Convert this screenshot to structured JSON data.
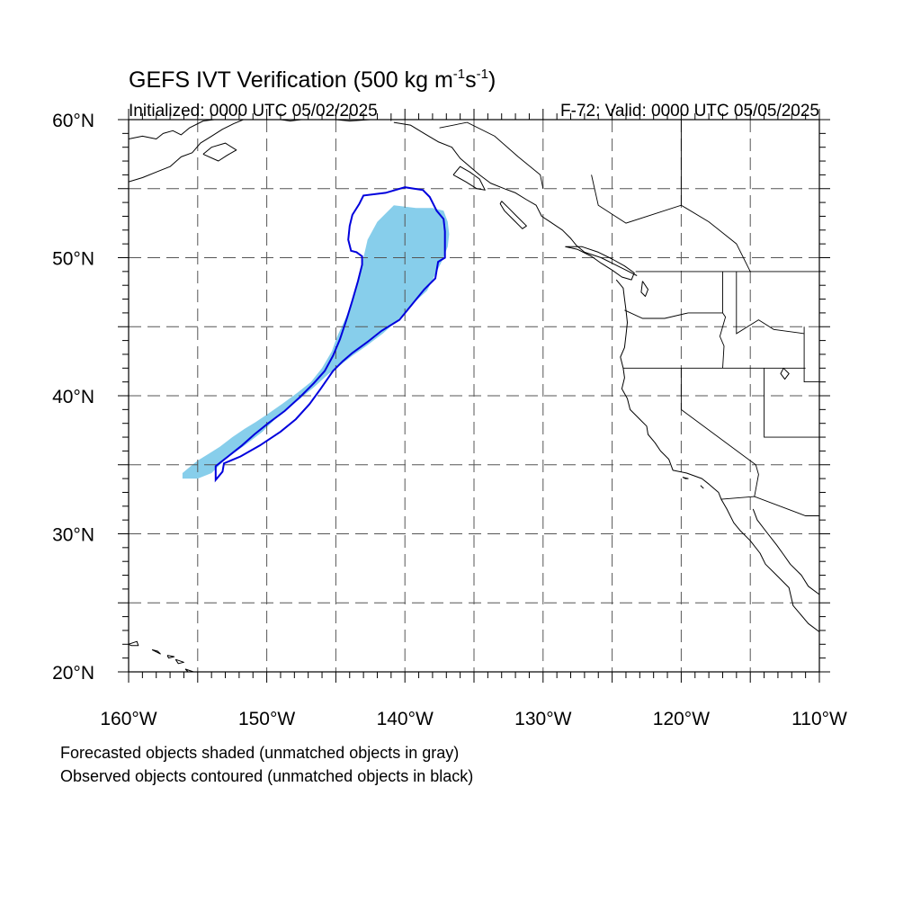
{
  "header": {
    "title_main": "GEFS IVT Verification (500 kg m",
    "title_sup1": "-1",
    "title_mid": "s",
    "title_sup2": "-1",
    "title_end": ")",
    "initialized": "Initialized: 0000 UTC 05/02/2025",
    "valid": "F-72: Valid: 0000 UTC 05/05/2025"
  },
  "map": {
    "projection": "cylindrical equidistant",
    "lon_range": [
      -160,
      -110
    ],
    "lat_range": [
      20,
      60
    ],
    "grid": "dashed",
    "lat_labels": [
      {
        "value": 60,
        "text": "60°N"
      },
      {
        "value": 50,
        "text": "50°N"
      },
      {
        "value": 40,
        "text": "40°N"
      },
      {
        "value": 30,
        "text": "30°N"
      },
      {
        "value": 20,
        "text": "20°N"
      }
    ],
    "lon_labels": [
      {
        "value": -160,
        "text": "160°W"
      },
      {
        "value": -150,
        "text": "150°W"
      },
      {
        "value": -140,
        "text": "140°W"
      },
      {
        "value": -130,
        "text": "130°W"
      },
      {
        "value": -120,
        "text": "120°W"
      },
      {
        "value": -110,
        "text": "110°W"
      }
    ],
    "colors": {
      "forecast_fill": "#87CEEB",
      "observed_contour": "#0000DD",
      "coastline": "#000000",
      "grid": "#555555"
    },
    "forecast_object_outline": [
      [
        -156.1,
        34.0
      ],
      [
        -156.1,
        34.4
      ],
      [
        -155.5,
        34.9
      ],
      [
        -155.0,
        35.3
      ],
      [
        -154.2,
        35.8
      ],
      [
        -153.4,
        36.3
      ],
      [
        -152.5,
        37.0
      ],
      [
        -151.6,
        37.6
      ],
      [
        -150.8,
        38.1
      ],
      [
        -149.9,
        38.7
      ],
      [
        -148.9,
        39.4
      ],
      [
        -147.8,
        40.2
      ],
      [
        -146.8,
        41.0
      ],
      [
        -146.0,
        42.0
      ],
      [
        -145.3,
        43.2
      ],
      [
        -144.9,
        44.3
      ],
      [
        -144.3,
        45.6
      ],
      [
        -143.7,
        47.1
      ],
      [
        -143.3,
        48.6
      ],
      [
        -143.0,
        50.0
      ],
      [
        -142.7,
        51.3
      ],
      [
        -142.0,
        52.6
      ],
      [
        -140.8,
        53.8
      ],
      [
        -139.2,
        53.6
      ],
      [
        -138.0,
        53.6
      ],
      [
        -137.2,
        53.4
      ],
      [
        -136.9,
        52.6
      ],
      [
        -136.8,
        51.7
      ],
      [
        -136.9,
        50.8
      ],
      [
        -137.3,
        49.8
      ],
      [
        -137.9,
        48.6
      ],
      [
        -138.4,
        47.6
      ],
      [
        -139.5,
        46.6
      ],
      [
        -140.5,
        45.5
      ],
      [
        -141.6,
        44.5
      ],
      [
        -142.8,
        43.6
      ],
      [
        -143.8,
        42.9
      ],
      [
        -144.7,
        42.2
      ],
      [
        -145.5,
        41.6
      ],
      [
        -146.6,
        40.6
      ],
      [
        -147.7,
        39.7
      ],
      [
        -148.9,
        38.8
      ],
      [
        -150.3,
        37.4
      ],
      [
        -151.6,
        36.4
      ],
      [
        -152.9,
        35.5
      ],
      [
        -154.0,
        34.4
      ],
      [
        -155.0,
        34.0
      ]
    ],
    "observed_object_outline": [
      [
        -153.7,
        33.9
      ],
      [
        -153.7,
        34.9
      ],
      [
        -152.8,
        35.6
      ],
      [
        -151.8,
        36.4
      ],
      [
        -150.9,
        37.2
      ],
      [
        -149.9,
        38.0
      ],
      [
        -148.7,
        38.9
      ],
      [
        -147.6,
        39.9
      ],
      [
        -146.6,
        40.9
      ],
      [
        -145.8,
        41.8
      ],
      [
        -145.2,
        42.9
      ],
      [
        -144.7,
        44.1
      ],
      [
        -144.2,
        45.6
      ],
      [
        -143.8,
        46.9
      ],
      [
        -143.4,
        48.3
      ],
      [
        -143.1,
        49.5
      ],
      [
        -143.1,
        50.1
      ],
      [
        -143.5,
        50.4
      ],
      [
        -143.9,
        50.5
      ],
      [
        -144.1,
        51.3
      ],
      [
        -144.0,
        52.3
      ],
      [
        -143.8,
        53.1
      ],
      [
        -143.3,
        53.9
      ],
      [
        -143.0,
        54.5
      ],
      [
        -141.4,
        54.7
      ],
      [
        -140.0,
        55.1
      ],
      [
        -138.7,
        54.9
      ],
      [
        -138.2,
        54.4
      ],
      [
        -137.7,
        53.4
      ],
      [
        -137.2,
        52.8
      ],
      [
        -137.1,
        51.9
      ],
      [
        -137.1,
        50.0
      ],
      [
        -137.6,
        49.7
      ],
      [
        -137.8,
        48.5
      ],
      [
        -138.6,
        47.7
      ],
      [
        -139.5,
        46.6
      ],
      [
        -140.4,
        45.5
      ],
      [
        -141.7,
        44.7
      ],
      [
        -142.7,
        43.9
      ],
      [
        -143.8,
        43.1
      ],
      [
        -144.5,
        42.5
      ],
      [
        -145.2,
        41.8
      ],
      [
        -146.1,
        40.5
      ],
      [
        -146.9,
        39.4
      ],
      [
        -147.9,
        38.3
      ],
      [
        -149.0,
        37.4
      ],
      [
        -150.5,
        36.4
      ],
      [
        -151.9,
        35.6
      ],
      [
        -153.1,
        35.1
      ],
      [
        -153.2,
        34.5
      ]
    ],
    "coastlines": [
      [
        [
          -160.0,
          58.6
        ],
        [
          -159.0,
          58.8
        ],
        [
          -158.0,
          58.6
        ],
        [
          -157.5,
          59.0
        ],
        [
          -156.8,
          59.2
        ],
        [
          -156.2,
          58.9
        ],
        [
          -155.6,
          59.4
        ],
        [
          -154.6,
          59.9
        ],
        [
          -153.8,
          60.0
        ]
      ],
      [
        [
          -160.0,
          55.5
        ],
        [
          -159.0,
          55.8
        ],
        [
          -158.0,
          56.2
        ],
        [
          -157.0,
          56.6
        ],
        [
          -156.2,
          57.3
        ],
        [
          -155.4,
          57.6
        ],
        [
          -154.8,
          58.3
        ],
        [
          -154.0,
          58.8
        ],
        [
          -153.2,
          59.3
        ],
        [
          -152.4,
          59.7
        ],
        [
          -151.7,
          60.0
        ]
      ],
      [
        [
          -154.6,
          57.5
        ],
        [
          -153.5,
          57.0
        ],
        [
          -152.9,
          57.4
        ],
        [
          -152.2,
          57.8
        ],
        [
          -153.0,
          58.3
        ],
        [
          -154.0,
          58.0
        ],
        [
          -154.6,
          57.5
        ]
      ],
      [
        [
          -149.0,
          60.0
        ],
        [
          -148.3,
          59.9
        ],
        [
          -147.5,
          60.0
        ]
      ],
      [
        [
          -145.0,
          60.0
        ],
        [
          -144.0,
          59.9
        ],
        [
          -142.5,
          60.0
        ]
      ],
      [
        [
          -140.8,
          59.8
        ],
        [
          -139.6,
          59.6
        ],
        [
          -138.6,
          59.0
        ],
        [
          -137.6,
          58.4
        ],
        [
          -136.6,
          58.0
        ],
        [
          -136.0,
          57.2
        ],
        [
          -135.3,
          56.6
        ],
        [
          -134.6,
          56.0
        ],
        [
          -133.8,
          55.4
        ],
        [
          -132.8,
          55.0
        ],
        [
          -132.0,
          54.7
        ],
        [
          -131.2,
          54.2
        ],
        [
          -130.5,
          53.8
        ],
        [
          -130.1,
          53.0
        ],
        [
          -129.5,
          52.6
        ],
        [
          -128.6,
          52.0
        ],
        [
          -128.0,
          51.4
        ],
        [
          -127.6,
          50.9
        ],
        [
          -127.0,
          50.4
        ],
        [
          -125.8,
          50.0
        ],
        [
          -124.8,
          49.5
        ],
        [
          -124.0,
          49.1
        ],
        [
          -123.2,
          48.7
        ]
      ],
      [
        [
          -136.5,
          56.0
        ],
        [
          -135.6,
          55.5
        ],
        [
          -134.8,
          55.0
        ],
        [
          -134.2,
          54.9
        ],
        [
          -134.6,
          55.7
        ],
        [
          -135.3,
          56.2
        ],
        [
          -136.0,
          56.6
        ],
        [
          -136.5,
          56.0
        ]
      ],
      [
        [
          -133.0,
          54.1
        ],
        [
          -132.5,
          53.6
        ],
        [
          -131.9,
          53.0
        ],
        [
          -131.2,
          52.3
        ],
        [
          -131.5,
          52.1
        ],
        [
          -132.2,
          52.8
        ],
        [
          -132.8,
          53.4
        ],
        [
          -133.1,
          53.9
        ],
        [
          -133.0,
          54.1
        ]
      ],
      [
        [
          -128.4,
          50.8
        ],
        [
          -127.5,
          50.6
        ],
        [
          -126.5,
          50.1
        ],
        [
          -125.8,
          49.6
        ],
        [
          -125.0,
          49.1
        ],
        [
          -124.3,
          48.6
        ],
        [
          -123.6,
          48.4
        ],
        [
          -123.4,
          48.9
        ],
        [
          -124.1,
          49.4
        ],
        [
          -125.0,
          49.9
        ],
        [
          -126.0,
          50.4
        ],
        [
          -127.2,
          50.8
        ],
        [
          -128.4,
          50.8
        ]
      ],
      [
        [
          -124.7,
          48.4
        ],
        [
          -124.2,
          47.8
        ],
        [
          -124.1,
          47.0
        ],
        [
          -124.0,
          46.2
        ],
        [
          -123.9,
          45.3
        ],
        [
          -124.0,
          44.4
        ],
        [
          -124.1,
          43.5
        ],
        [
          -124.4,
          42.8
        ],
        [
          -124.2,
          42.0
        ],
        [
          -124.1,
          41.3
        ],
        [
          -124.3,
          40.5
        ],
        [
          -123.9,
          39.8
        ],
        [
          -123.7,
          39.0
        ],
        [
          -123.0,
          38.3
        ],
        [
          -122.5,
          37.8
        ],
        [
          -122.4,
          37.2
        ],
        [
          -121.9,
          36.6
        ],
        [
          -121.5,
          36.0
        ],
        [
          -120.9,
          35.4
        ],
        [
          -120.6,
          34.6
        ],
        [
          -119.6,
          34.4
        ],
        [
          -118.5,
          34.0
        ],
        [
          -118.0,
          33.6
        ],
        [
          -117.3,
          33.0
        ],
        [
          -117.1,
          32.5
        ],
        [
          -116.7,
          31.8
        ],
        [
          -116.2,
          30.8
        ],
        [
          -115.7,
          30.2
        ],
        [
          -115.0,
          29.5
        ],
        [
          -114.3,
          28.6
        ],
        [
          -113.9,
          27.8
        ],
        [
          -113.1,
          27.0
        ],
        [
          -112.2,
          26.1
        ],
        [
          -111.9,
          24.8
        ],
        [
          -110.8,
          23.5
        ],
        [
          -110.0,
          22.9
        ]
      ],
      [
        [
          -114.8,
          31.8
        ],
        [
          -114.5,
          31.0
        ],
        [
          -113.8,
          30.1
        ],
        [
          -113.1,
          29.2
        ],
        [
          -112.6,
          28.5
        ],
        [
          -112.1,
          27.8
        ],
        [
          -111.3,
          27.0
        ],
        [
          -110.8,
          26.2
        ],
        [
          -110.0,
          25.6
        ]
      ],
      [
        [
          -122.8,
          48.3
        ],
        [
          -122.4,
          47.7
        ],
        [
          -122.6,
          47.2
        ],
        [
          -122.9,
          47.5
        ],
        [
          -122.8,
          48.3
        ]
      ],
      [
        [
          -160.0,
          22.0
        ],
        [
          -159.4,
          22.2
        ],
        [
          -159.3,
          21.9
        ],
        [
          -159.8,
          21.9
        ],
        [
          -160.0,
          22.0
        ]
      ],
      [
        [
          -158.3,
          21.6
        ],
        [
          -157.7,
          21.3
        ],
        [
          -157.9,
          21.5
        ],
        [
          -158.3,
          21.6
        ]
      ],
      [
        [
          -157.2,
          21.2
        ],
        [
          -156.7,
          21.1
        ],
        [
          -157.1,
          21.0
        ],
        [
          -157.2,
          21.2
        ]
      ],
      [
        [
          -156.6,
          20.9
        ],
        [
          -156.0,
          20.7
        ],
        [
          -156.4,
          20.6
        ],
        [
          -156.6,
          20.9
        ]
      ],
      [
        [
          -155.9,
          20.2
        ],
        [
          -155.3,
          20.0
        ],
        [
          -154.9,
          19.6
        ],
        [
          -155.5,
          19.8
        ],
        [
          -155.9,
          20.2
        ]
      ],
      [
        [
          -118.6,
          33.5
        ],
        [
          -118.4,
          33.3
        ],
        [
          -118.5,
          33.4
        ],
        [
          -118.6,
          33.5
        ]
      ],
      [
        [
          -119.9,
          34.1
        ],
        [
          -119.5,
          34.0
        ],
        [
          -119.7,
          34.0
        ],
        [
          -119.9,
          34.1
        ]
      ],
      [
        [
          -112.6,
          42.0
        ],
        [
          -112.2,
          41.6
        ],
        [
          -112.5,
          41.2
        ],
        [
          -112.8,
          41.6
        ],
        [
          -112.6,
          42.0
        ]
      ]
    ],
    "boundaries": [
      [
        [
          -123.3,
          49.0
        ],
        [
          -110.0,
          49.0
        ]
      ],
      [
        [
          -141.0,
          60.0
        ],
        [
          -141.0,
          59.9
        ]
      ],
      [
        [
          -137.5,
          59.4
        ],
        [
          -135.5,
          59.8
        ],
        [
          -133.5,
          58.8
        ],
        [
          -131.8,
          57.3
        ],
        [
          -130.2,
          56.0
        ],
        [
          -130.0,
          55.0
        ]
      ],
      [
        [
          -117.0,
          49.0
        ],
        [
          -117.0,
          46.0
        ],
        [
          -116.8,
          45.7
        ],
        [
          -117.2,
          44.3
        ],
        [
          -116.9,
          43.6
        ],
        [
          -117.0,
          42.0
        ]
      ],
      [
        [
          -124.1,
          46.2
        ],
        [
          -122.8,
          45.6
        ],
        [
          -121.2,
          45.6
        ],
        [
          -119.5,
          46.0
        ],
        [
          -117.0,
          46.0
        ]
      ],
      [
        [
          -124.2,
          42.0
        ],
        [
          -111.0,
          42.0
        ]
      ],
      [
        [
          -120.0,
          42.0
        ],
        [
          -120.0,
          39.0
        ],
        [
          -114.6,
          35.0
        ],
        [
          -114.4,
          34.3
        ],
        [
          -114.7,
          32.7
        ]
      ],
      [
        [
          -117.1,
          32.5
        ],
        [
          -114.7,
          32.7
        ],
        [
          -111.0,
          31.3
        ],
        [
          -110.0,
          31.3
        ]
      ],
      [
        [
          -114.0,
          42.0
        ],
        [
          -114.0,
          37.0
        ],
        [
          -110.0,
          37.0
        ]
      ],
      [
        [
          -116.0,
          49.0
        ],
        [
          -116.0,
          44.5
        ],
        [
          -114.4,
          45.5
        ],
        [
          -113.3,
          44.8
        ],
        [
          -111.1,
          44.5
        ]
      ],
      [
        [
          -111.1,
          45.0
        ],
        [
          -111.1,
          41.0
        ],
        [
          -110.0,
          41.0
        ]
      ],
      [
        [
          -126.5,
          56.0
        ],
        [
          -126.0,
          53.8
        ],
        [
          -124.0,
          52.5
        ],
        [
          -120.0,
          53.8
        ],
        [
          -118.0,
          52.6
        ],
        [
          -116.0,
          51.0
        ],
        [
          -115.0,
          49.0
        ]
      ],
      [
        [
          -120.0,
          60.0
        ],
        [
          -120.0,
          53.8
        ]
      ]
    ]
  },
  "footer": {
    "line1": "Forecasted objects shaded (unmatched objects in gray)",
    "line2": "Observed objects contoured (unmatched objects in black)"
  }
}
